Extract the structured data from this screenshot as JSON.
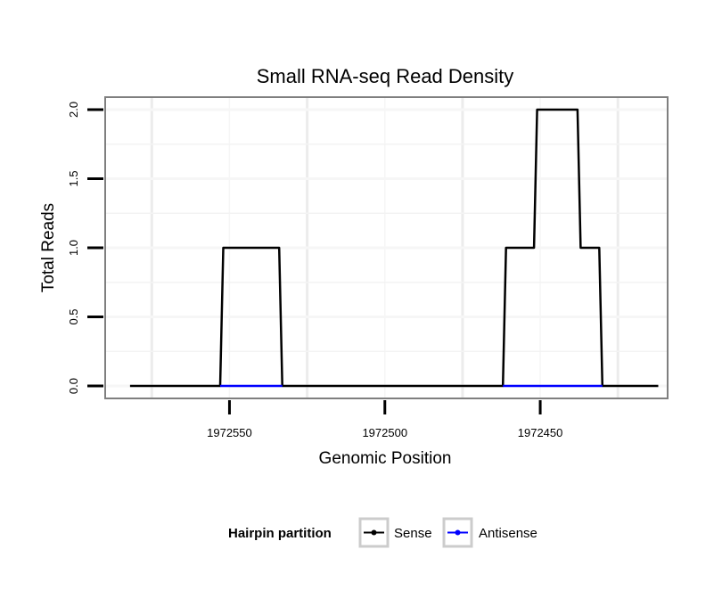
{
  "chart_data": {
    "type": "line",
    "title": "Small RNA-seq Read Density",
    "xlabel": "Genomic Position",
    "ylabel": "Total Reads",
    "xlim": [
      1972590,
      1972409
    ],
    "x_reversed": true,
    "ylim": [
      -0.09,
      2.09
    ],
    "x_ticks": [
      1972550,
      1972500,
      1972450
    ],
    "x_tick_labels": [
      "1972550",
      "1972500",
      "1972450"
    ],
    "y_ticks": [
      0.0,
      0.5,
      1.0,
      1.5,
      2.0
    ],
    "y_tick_labels": [
      "0.0",
      "0.5",
      "1.0",
      "1.5",
      "2.0"
    ],
    "grid": true,
    "legend": {
      "title": "Hairpin partition",
      "position": "bottom"
    },
    "series": [
      {
        "name": "Sense",
        "color": "#000000",
        "x": [
          1972582,
          1972553,
          1972552,
          1972534,
          1972533,
          1972462,
          1972461,
          1972452,
          1972451,
          1972438,
          1972437,
          1972431,
          1972430,
          1972412
        ],
        "y": [
          0,
          0,
          1,
          1,
          0,
          0,
          1,
          1,
          2,
          2,
          1,
          1,
          0,
          0
        ]
      },
      {
        "name": "Antisense",
        "color": "#0000ff",
        "x": [
          1972553,
          1972533,
          1972462,
          1972430
        ],
        "y": [
          0,
          0,
          0,
          0
        ],
        "segments": [
          [
            0,
            1
          ],
          [
            2,
            3
          ]
        ]
      }
    ]
  }
}
